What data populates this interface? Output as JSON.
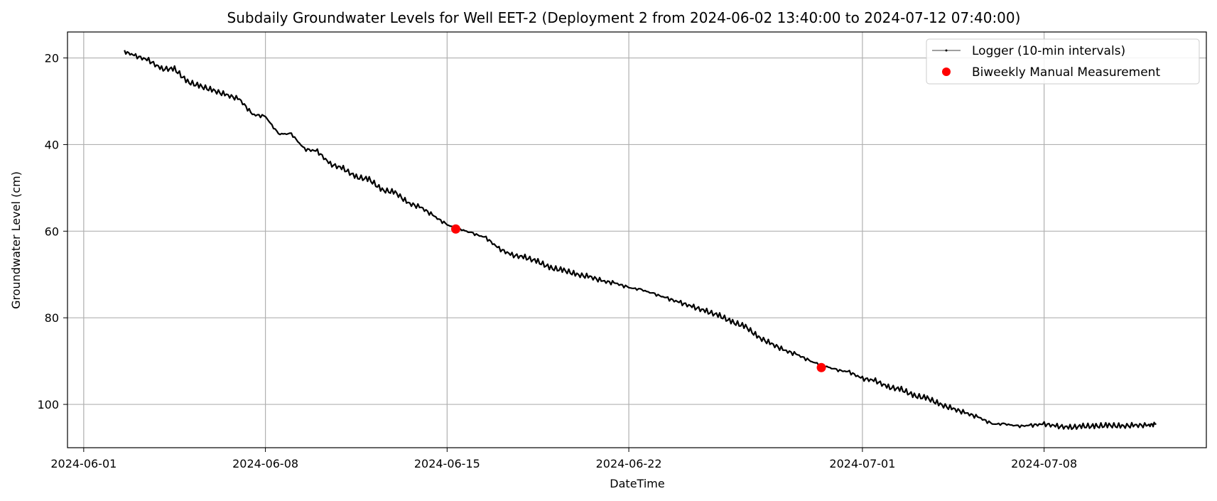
{
  "chart_data": {
    "type": "line",
    "title": "Subdaily Groundwater Levels for Well EET-2 (Deployment 2 from 2024-06-02 13:40:00 to 2024-07-12 07:40:00)",
    "xlabel": "DateTime",
    "ylabel": "Groundwater Level (cm)",
    "x_axis_type": "date",
    "xlim": [
      "2024-05-31T09:00:00",
      "2024-07-14T06:00:00"
    ],
    "ylim": [
      110,
      14
    ],
    "y_inverted": true,
    "grid": true,
    "x_ticks": [
      "2024-06-01",
      "2024-06-08",
      "2024-06-15",
      "2024-06-22",
      "2024-07-01",
      "2024-07-08"
    ],
    "y_ticks": [
      20,
      40,
      60,
      80,
      100
    ],
    "legend": {
      "placement": "top-right",
      "entries": [
        "Logger (10-min intervals)",
        "Biweekly Manual Measurement"
      ]
    },
    "series": [
      {
        "name": "Logger (10-min intervals)",
        "kind": "line",
        "color": "#000000",
        "x": [
          "2024-06-02T13:40:00",
          "2024-06-03T00:00:00",
          "2024-06-03T12:00:00",
          "2024-06-04T00:00:00",
          "2024-06-04T12:00:00",
          "2024-06-05T00:00:00",
          "2024-06-05T12:00:00",
          "2024-06-06T00:00:00",
          "2024-06-06T12:00:00",
          "2024-06-07T00:00:00",
          "2024-06-07T12:00:00",
          "2024-06-08T00:00:00",
          "2024-06-08T12:00:00",
          "2024-06-09T00:00:00",
          "2024-06-09T12:00:00",
          "2024-06-10T00:00:00",
          "2024-06-10T12:00:00",
          "2024-06-11T00:00:00",
          "2024-06-11T12:00:00",
          "2024-06-12T00:00:00",
          "2024-06-12T12:00:00",
          "2024-06-13T00:00:00",
          "2024-06-13T12:00:00",
          "2024-06-14T00:00:00",
          "2024-06-14T12:00:00",
          "2024-06-15T00:00:00",
          "2024-06-15T12:00:00",
          "2024-06-16T00:00:00",
          "2024-06-16T12:00:00",
          "2024-06-17T00:00:00",
          "2024-06-17T12:00:00",
          "2024-06-18T00:00:00",
          "2024-06-18T12:00:00",
          "2024-06-19T00:00:00",
          "2024-06-19T12:00:00",
          "2024-06-20T00:00:00",
          "2024-06-20T12:00:00",
          "2024-06-21T00:00:00",
          "2024-06-21T12:00:00",
          "2024-06-22T00:00:00",
          "2024-06-22T12:00:00",
          "2024-06-23T00:00:00",
          "2024-06-23T12:00:00",
          "2024-06-24T00:00:00",
          "2024-06-24T12:00:00",
          "2024-06-25T00:00:00",
          "2024-06-25T12:00:00",
          "2024-06-26T00:00:00",
          "2024-06-26T12:00:00",
          "2024-06-27T00:00:00",
          "2024-06-27T12:00:00",
          "2024-06-28T00:00:00",
          "2024-06-28T12:00:00",
          "2024-06-29T00:00:00",
          "2024-06-29T12:00:00",
          "2024-06-30T00:00:00",
          "2024-06-30T12:00:00",
          "2024-07-01T00:00:00",
          "2024-07-01T12:00:00",
          "2024-07-02T00:00:00",
          "2024-07-02T12:00:00",
          "2024-07-03T00:00:00",
          "2024-07-03T12:00:00",
          "2024-07-04T00:00:00",
          "2024-07-04T12:00:00",
          "2024-07-05T00:00:00",
          "2024-07-05T12:00:00",
          "2024-07-06T00:00:00",
          "2024-07-06T12:00:00",
          "2024-07-07T00:00:00",
          "2024-07-07T12:00:00",
          "2024-07-08T00:00:00",
          "2024-07-08T12:00:00",
          "2024-07-09T00:00:00",
          "2024-07-09T12:00:00",
          "2024-07-10T00:00:00",
          "2024-07-10T12:00:00",
          "2024-07-11T00:00:00",
          "2024-07-11T12:00:00",
          "2024-07-12T00:00:00",
          "2024-07-12T07:40:00"
        ],
        "y": [
          18.5,
          19.5,
          20.5,
          22.5,
          22.5,
          25.5,
          26.5,
          27.5,
          28.5,
          29.5,
          33.0,
          33.5,
          37.5,
          37.5,
          41.0,
          41.5,
          44.5,
          45.5,
          47.5,
          48.0,
          50.5,
          51.0,
          53.5,
          54.5,
          56.5,
          58.5,
          59.5,
          60.5,
          61.5,
          64.0,
          65.5,
          66.0,
          67.0,
          68.5,
          69.0,
          70.0,
          70.5,
          71.5,
          72.0,
          73.0,
          73.5,
          74.5,
          75.5,
          76.5,
          77.5,
          78.5,
          79.5,
          81.0,
          82.0,
          84.5,
          86.0,
          87.5,
          88.5,
          90.0,
          91.0,
          92.0,
          92.5,
          94.0,
          94.5,
          96.0,
          96.5,
          98.0,
          98.5,
          100.0,
          101.0,
          102.0,
          103.0,
          104.5,
          104.5,
          105.0,
          104.8,
          104.5,
          105.0,
          105.3,
          105.0,
          105.0,
          104.8,
          105.0,
          104.8,
          104.8,
          104.5
        ]
      },
      {
        "name": "Biweekly Manual Measurement",
        "kind": "scatter",
        "color": "#ff0000",
        "x": [
          "2024-06-15T08:00:00",
          "2024-06-29T10:00:00"
        ],
        "y": [
          59.5,
          91.5
        ]
      }
    ]
  }
}
